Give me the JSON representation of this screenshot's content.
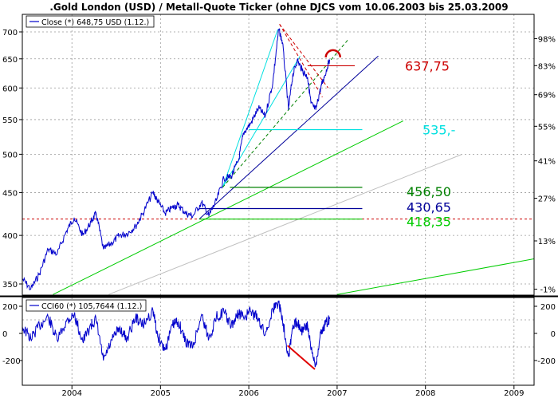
{
  "chart_data": [
    {
      "type": "line",
      "title": ".Gold London (USD) / Metall-Quote Ticker (ohne DJCS vom 10.06.2003 bis 25.03.2009",
      "legend": {
        "label": "Close (*) 648,75 USD (1.12.)",
        "placement": "top-left"
      },
      "scale": "log",
      "ylim": [
        340,
        720
      ],
      "xlim": [
        "2003-06-10",
        "2009-03-25"
      ],
      "y_ticks_left": [
        {
          "value": 350,
          "label": "350"
        },
        {
          "value": 400,
          "label": "400"
        },
        {
          "value": 450,
          "label": "450"
        },
        {
          "value": 500,
          "label": "500"
        },
        {
          "value": 550,
          "label": "550"
        },
        {
          "value": 600,
          "label": "600"
        },
        {
          "value": 650,
          "label": "650"
        },
        {
          "value": 700,
          "label": "700"
        }
      ],
      "y_ticks_right": [
        {
          "value": 345,
          "label": "-1%"
        },
        {
          "value": 394,
          "label": "13%"
        },
        {
          "value": 443,
          "label": "27%"
        },
        {
          "value": 491,
          "label": "41%"
        },
        {
          "value": 540,
          "label": "55%"
        },
        {
          "value": 589,
          "label": "69%"
        },
        {
          "value": 638,
          "label": "83%"
        },
        {
          "value": 687,
          "label": "98%"
        }
      ],
      "x_ticks": [
        {
          "x": "2004-01-01",
          "label": "2004"
        },
        {
          "x": "2005-01-01",
          "label": "2005"
        },
        {
          "x": "2006-01-01",
          "label": "2006"
        },
        {
          "x": "2007-01-01",
          "label": "2007"
        },
        {
          "x": "2008-01-01",
          "label": "2008"
        },
        {
          "x": "2009-01-01",
          "label": "2009"
        }
      ],
      "series": [
        {
          "color": "#0000cc",
          "points": [
            [
              "2003-06-10",
              355
            ],
            [
              "2003-07-15",
              345
            ],
            [
              "2003-08-20",
              360
            ],
            [
              "2003-09-25",
              385
            ],
            [
              "2003-11-01",
              380
            ],
            [
              "2003-12-10",
              405
            ],
            [
              "2004-01-10",
              420
            ],
            [
              "2004-02-15",
              400
            ],
            [
              "2004-03-20",
              415
            ],
            [
              "2004-04-10",
              425
            ],
            [
              "2004-05-10",
              385
            ],
            [
              "2004-06-15",
              392
            ],
            [
              "2004-07-15",
              400
            ],
            [
              "2004-08-15",
              402
            ],
            [
              "2004-09-20",
              410
            ],
            [
              "2004-10-20",
              425
            ],
            [
              "2004-12-01",
              450
            ],
            [
              "2004-12-20",
              440
            ],
            [
              "2005-01-20",
              425
            ],
            [
              "2005-02-20",
              432
            ],
            [
              "2005-03-15",
              435
            ],
            [
              "2005-04-15",
              425
            ],
            [
              "2005-05-15",
              422
            ],
            [
              "2005-06-20",
              438
            ],
            [
              "2005-07-20",
              422
            ],
            [
              "2005-08-20",
              440
            ],
            [
              "2005-09-20",
              468
            ],
            [
              "2005-10-20",
              470
            ],
            [
              "2005-11-20",
              492
            ],
            [
              "2005-12-10",
              530
            ],
            [
              "2006-01-10",
              545
            ],
            [
              "2006-02-10",
              568
            ],
            [
              "2006-03-10",
              555
            ],
            [
              "2006-04-10",
              608
            ],
            [
              "2006-05-05",
              705
            ],
            [
              "2006-05-20",
              680
            ],
            [
              "2006-06-14",
              565
            ],
            [
              "2006-07-01",
              620
            ],
            [
              "2006-07-20",
              648
            ],
            [
              "2006-08-10",
              630
            ],
            [
              "2006-09-01",
              618
            ],
            [
              "2006-09-15",
              575
            ],
            [
              "2006-10-05",
              565
            ],
            [
              "2006-10-25",
              600
            ],
            [
              "2006-11-10",
              620
            ],
            [
              "2006-12-01",
              648.75
            ]
          ]
        }
      ],
      "horizontal_lines": [
        {
          "value": 637.75,
          "label": "637,75",
          "color": "#cc0000",
          "x_from": "2006-09-01",
          "x_to": "2007-03-15"
        },
        {
          "value": 535,
          "label": "535,-",
          "color": "#00e0e0",
          "x_from": "2006-01-01",
          "x_to": "2007-04-15"
        },
        {
          "value": 456.5,
          "label": "456,50",
          "color": "#008000",
          "x_from": "2005-10-15",
          "x_to": "2007-04-15"
        },
        {
          "value": 430.65,
          "label": "430,65",
          "color": "#000099",
          "x_from": "2005-06-10",
          "x_to": "2007-04-15"
        },
        {
          "value": 418.35,
          "label": "418,35",
          "color": "#00cc00",
          "x_from": "2005-06-10",
          "x_to": "2007-04-15"
        }
      ],
      "reference_line": {
        "value": 418.35,
        "color": "#cc0000",
        "style": "dashed"
      },
      "trend_lines": [
        {
          "color": "#00cc00",
          "from": [
            "2003-10-15",
            340
          ],
          "to": [
            "2007-10-01",
            548
          ]
        },
        {
          "color": "#00cc00",
          "from": [
            "2007-01-01",
            340
          ],
          "to": [
            "2009-03-25",
            375
          ]
        },
        {
          "color": "#c0c0c0",
          "from": [
            "2004-06-01",
            340
          ],
          "to": [
            "2008-06-01",
            500
          ]
        },
        {
          "color": "#000099",
          "from": [
            "2005-06-10",
            418.35
          ],
          "to": [
            "2007-06-20",
            655
          ]
        },
        {
          "color": "#00e0e0",
          "from": [
            "2005-09-15",
            456.5
          ],
          "to": [
            "2006-05-01",
            705
          ]
        },
        {
          "color": "#00e0e0",
          "from": [
            "2005-09-15",
            456.5
          ],
          "to": [
            "2006-08-01",
            655
          ]
        },
        {
          "color": "#008000",
          "from": [
            "2005-09-15",
            456.5
          ],
          "to": [
            "2007-02-15",
            685
          ],
          "style": "dashed"
        },
        {
          "color": "#cc0000",
          "from": [
            "2006-05-08",
            715
          ],
          "to": [
            "2006-11-01",
            585
          ],
          "style": "dashed"
        },
        {
          "color": "#cc0000",
          "from": [
            "2006-05-08",
            715
          ],
          "to": [
            "2006-11-25",
            600
          ],
          "style": "dashed"
        }
      ],
      "annotation": {
        "shape": "arc",
        "color": "#cc0000",
        "x": "2006-12-15",
        "y": 660
      }
    },
    {
      "type": "line",
      "legend": {
        "label": "CCI60 (*) 105,7644 (1.12.)",
        "placement": "top-left"
      },
      "ylim": [
        -300,
        300
      ],
      "y_ticks_left": [
        {
          "value": 200,
          "label": "200"
        },
        {
          "value": 0,
          "label": "0"
        },
        {
          "value": -200,
          "label": "-200"
        }
      ],
      "y_ticks_right": [
        {
          "value": 200,
          "label": "200"
        },
        {
          "value": 0,
          "label": "0"
        },
        {
          "value": -200,
          "label": "-200"
        }
      ],
      "reference_lines": [
        100,
        -100
      ],
      "series": [
        {
          "color": "#0000cc",
          "points": [
            [
              "2003-06-10",
              50
            ],
            [
              "2003-07-15",
              -40
            ],
            [
              "2003-08-20",
              60
            ],
            [
              "2003-09-25",
              120
            ],
            [
              "2003-11-01",
              -50
            ],
            [
              "2003-12-10",
              90
            ],
            [
              "2004-01-10",
              140
            ],
            [
              "2004-02-15",
              -60
            ],
            [
              "2004-03-20",
              60
            ],
            [
              "2004-04-10",
              100
            ],
            [
              "2004-05-10",
              -200
            ],
            [
              "2004-06-15",
              -50
            ],
            [
              "2004-07-15",
              40
            ],
            [
              "2004-08-15",
              -40
            ],
            [
              "2004-09-20",
              120
            ],
            [
              "2004-10-20",
              60
            ],
            [
              "2004-12-01",
              170
            ],
            [
              "2004-12-20",
              -20
            ],
            [
              "2005-01-20",
              -120
            ],
            [
              "2005-02-20",
              60
            ],
            [
              "2005-03-15",
              90
            ],
            [
              "2005-04-15",
              -60
            ],
            [
              "2005-05-15",
              -100
            ],
            [
              "2005-06-20",
              140
            ],
            [
              "2005-07-20",
              -40
            ],
            [
              "2005-08-20",
              120
            ],
            [
              "2005-09-20",
              160
            ],
            [
              "2005-10-20",
              50
            ],
            [
              "2005-11-20",
              150
            ],
            [
              "2005-12-10",
              120
            ],
            [
              "2006-01-10",
              160
            ],
            [
              "2006-02-10",
              110
            ],
            [
              "2006-03-10",
              -10
            ],
            [
              "2006-04-10",
              180
            ],
            [
              "2006-05-05",
              230
            ],
            [
              "2006-05-20",
              110
            ],
            [
              "2006-06-14",
              -170
            ],
            [
              "2006-07-01",
              40
            ],
            [
              "2006-07-20",
              90
            ],
            [
              "2006-08-10",
              20
            ],
            [
              "2006-09-01",
              60
            ],
            [
              "2006-09-15",
              -120
            ],
            [
              "2006-10-05",
              -230
            ],
            [
              "2006-10-25",
              0
            ],
            [
              "2006-11-10",
              60
            ],
            [
              "2006-12-01",
              105.7644
            ]
          ]
        }
      ],
      "trend_lines": [
        {
          "color": "#e00000",
          "from": [
            "2006-06-10",
            -90
          ],
          "to": [
            "2006-10-01",
            -265
          ]
        }
      ]
    }
  ]
}
